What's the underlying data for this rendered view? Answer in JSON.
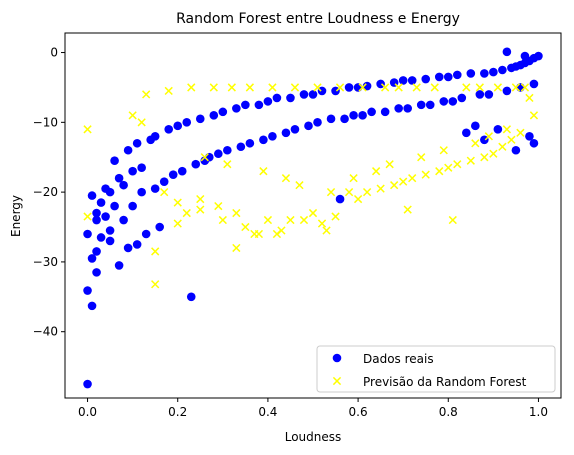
{
  "chart_data": {
    "type": "scatter",
    "title": "Random Forest entre Loudness e Energy",
    "xlabel": "Loudness",
    "ylabel": "Energy",
    "xlim": [
      -0.05,
      1.05
    ],
    "ylim": [
      -49.5,
      2.8
    ],
    "xticks": [
      0.0,
      0.2,
      0.4,
      0.6,
      0.8,
      1.0
    ],
    "xtick_labels": [
      "0.0",
      "0.2",
      "0.4",
      "0.6",
      "0.8",
      "1.0"
    ],
    "yticks": [
      0,
      -10,
      -20,
      -30,
      -40
    ],
    "ytick_labels": [
      "0",
      "−10",
      "−20",
      "−30",
      "−40"
    ],
    "grid": false,
    "legend_position": "lower-right",
    "series": [
      {
        "name": "Dados reais",
        "marker": "circle",
        "color": "#0000ff",
        "x": [
          0.0,
          0.01,
          0.0,
          0.02,
          0.23,
          0.01,
          0.02,
          0.0,
          0.05,
          0.03,
          0.02,
          0.04,
          0.06,
          0.03,
          0.01,
          0.05,
          0.08,
          0.07,
          0.1,
          0.12,
          0.02,
          0.04,
          0.06,
          0.09,
          0.11,
          0.14,
          0.15,
          0.18,
          0.2,
          0.22,
          0.25,
          0.28,
          0.3,
          0.33,
          0.35,
          0.38,
          0.4,
          0.42,
          0.45,
          0.48,
          0.5,
          0.52,
          0.55,
          0.58,
          0.6,
          0.62,
          0.65,
          0.68,
          0.7,
          0.72,
          0.75,
          0.78,
          0.8,
          0.82,
          0.85,
          0.88,
          0.9,
          0.92,
          0.94,
          0.95,
          0.96,
          0.97,
          0.98,
          0.99,
          1.0,
          0.56,
          0.93,
          0.97,
          0.98,
          0.99,
          0.95,
          0.91,
          0.88,
          0.86,
          0.84,
          0.08,
          0.1,
          0.12,
          0.15,
          0.17,
          0.19,
          0.21,
          0.24,
          0.26,
          0.27,
          0.29,
          0.31,
          0.34,
          0.36,
          0.39,
          0.41,
          0.44,
          0.46,
          0.49,
          0.51,
          0.54,
          0.57,
          0.59,
          0.61,
          0.63,
          0.66,
          0.69,
          0.71,
          0.74,
          0.76,
          0.79,
          0.81,
          0.83,
          0.87,
          0.89,
          0.93,
          0.96,
          0.99,
          0.13,
          0.16,
          0.05,
          0.07,
          0.09,
          0.11
        ],
        "y": [
          -47.5,
          -36.3,
          -34.1,
          -31.5,
          -35.0,
          -29.5,
          -28.5,
          -26.0,
          -25.5,
          -26.5,
          -24.0,
          -23.5,
          -22.0,
          -21.5,
          -20.5,
          -20.0,
          -19.0,
          -18.0,
          -17.0,
          -16.5,
          -23.0,
          -19.5,
          -15.5,
          -14.0,
          -13.0,
          -12.5,
          -12.0,
          -11.0,
          -10.5,
          -10.0,
          -9.5,
          -9.0,
          -8.5,
          -8.0,
          -7.5,
          -7.5,
          -7.0,
          -6.5,
          -6.5,
          -6.0,
          -6.0,
          -5.5,
          -5.5,
          -5.0,
          -5.0,
          -4.8,
          -4.5,
          -4.3,
          -4.0,
          -4.0,
          -3.8,
          -3.5,
          -3.5,
          -3.2,
          -3.0,
          -3.0,
          -2.8,
          -2.5,
          -2.2,
          -2.0,
          -1.8,
          -1.5,
          -1.2,
          -0.8,
          -0.5,
          -21.0,
          0.1,
          -0.5,
          -12.0,
          -13.0,
          -14.0,
          -11.0,
          -12.5,
          -10.5,
          -11.5,
          -24.0,
          -22.0,
          -20.0,
          -19.5,
          -18.5,
          -17.5,
          -17.0,
          -16.0,
          -15.5,
          -15.0,
          -14.5,
          -14.0,
          -13.5,
          -13.0,
          -12.5,
          -12.0,
          -11.5,
          -11.0,
          -10.5,
          -10.0,
          -9.5,
          -9.5,
          -9.0,
          -9.0,
          -8.5,
          -8.5,
          -8.0,
          -8.0,
          -7.5,
          -7.5,
          -7.0,
          -7.0,
          -6.5,
          -6.0,
          -6.0,
          -5.5,
          -5.0,
          -4.5,
          -26.0,
          -25.0,
          -27.0,
          -30.5,
          -28.0,
          -27.5
        ]
      },
      {
        "name": "Previsão da Random Forest",
        "marker": "x",
        "color": "#ffff00",
        "x": [
          0.0,
          0.0,
          0.15,
          0.15,
          0.2,
          0.22,
          0.25,
          0.3,
          0.33,
          0.35,
          0.38,
          0.4,
          0.43,
          0.45,
          0.48,
          0.5,
          0.52,
          0.55,
          0.58,
          0.6,
          0.62,
          0.65,
          0.68,
          0.7,
          0.72,
          0.75,
          0.78,
          0.8,
          0.82,
          0.85,
          0.88,
          0.9,
          0.92,
          0.94,
          0.96,
          0.98,
          0.81,
          0.71,
          0.53,
          0.42,
          0.37,
          0.33,
          0.29,
          0.25,
          0.2,
          0.17,
          0.12,
          0.1,
          0.13,
          0.18,
          0.23,
          0.28,
          0.32,
          0.36,
          0.41,
          0.46,
          0.51,
          0.56,
          0.61,
          0.66,
          0.69,
          0.73,
          0.77,
          0.84,
          0.87,
          0.91,
          0.95,
          0.97,
          0.26,
          0.31,
          0.39,
          0.44,
          0.47,
          0.54,
          0.59,
          0.64,
          0.67,
          0.74,
          0.79,
          0.86,
          0.89,
          0.93,
          0.99
        ],
        "y": [
          -11.0,
          -23.5,
          -33.2,
          -28.5,
          -24.5,
          -23.0,
          -22.5,
          -24.0,
          -28.0,
          -25.0,
          -26.0,
          -24.0,
          -25.5,
          -24.0,
          -24.0,
          -23.0,
          -24.5,
          -23.5,
          -20.0,
          -21.0,
          -20.0,
          -19.5,
          -19.0,
          -18.5,
          -18.0,
          -17.5,
          -17.0,
          -16.5,
          -16.0,
          -15.5,
          -15.0,
          -14.5,
          -13.5,
          -12.5,
          -11.5,
          -6.5,
          -24.0,
          -22.5,
          -25.5,
          -26.0,
          -26.0,
          -23.0,
          -22.0,
          -21.0,
          -21.5,
          -20.0,
          -10.0,
          -9.0,
          -6.0,
          -5.5,
          -5.0,
          -5.0,
          -5.0,
          -5.0,
          -5.0,
          -5.0,
          -5.0,
          -5.0,
          -5.0,
          -5.0,
          -5.0,
          -5.0,
          -5.0,
          -5.0,
          -5.0,
          -5.0,
          -5.0,
          -5.0,
          -15.0,
          -16.0,
          -17.0,
          -18.0,
          -19.0,
          -20.0,
          -18.0,
          -17.0,
          -16.0,
          -15.0,
          -14.0,
          -13.0,
          -12.0,
          -11.0,
          -9.0
        ]
      }
    ]
  }
}
